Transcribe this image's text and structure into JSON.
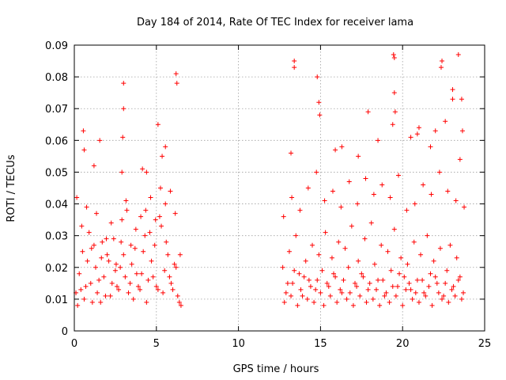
{
  "chart_data": {
    "type": "scatter",
    "title": "Day 184 of 2014, Rate Of TEC Index for receiver lama",
    "xlabel": "GPS time / hours",
    "ylabel": "ROTI / TECUs",
    "xlim": [
      0,
      25
    ],
    "ylim": [
      0,
      0.09
    ],
    "xticks": [
      0,
      5,
      10,
      15,
      20,
      25
    ],
    "xtick_labels": [
      "0",
      "5",
      "10",
      "15",
      "20",
      "25"
    ],
    "yticks": [
      0,
      0.01,
      0.02,
      0.03,
      0.04,
      0.05,
      0.06,
      0.07,
      0.08,
      0.09
    ],
    "ytick_labels": [
      "0",
      "0.01",
      "0.02",
      "0.03",
      "0.04",
      "0.05",
      "0.06",
      "0.07",
      "0.08",
      "0.09"
    ],
    "grid": true,
    "marker": "+",
    "color": "#ff0000",
    "series": [
      {
        "name": "ROTI",
        "x": [
          0.1,
          0.3,
          0.5,
          0.7,
          0.9,
          1.1,
          1.3,
          1.5,
          1.7,
          1.9,
          2.1,
          2.3,
          2.5,
          2.7,
          2.9,
          3.0,
          3.1,
          3.3,
          3.5,
          3.7,
          3.9,
          4.1,
          4.3,
          4.5,
          4.7,
          4.9,
          5.1,
          5.3,
          5.5,
          5.7,
          5.9,
          6.1,
          6.3,
          6.5,
          0.2,
          0.4,
          0.6,
          0.8,
          1.0,
          1.2,
          1.4,
          1.6,
          1.8,
          2.0,
          2.2,
          2.4,
          2.6,
          2.8,
          3.2,
          3.4,
          3.6,
          3.8,
          4.0,
          4.2,
          4.4,
          4.6,
          4.8,
          5.0,
          5.2,
          5.4,
          5.6,
          5.8,
          6.0,
          6.2,
          6.4,
          0.15,
          0.45,
          0.75,
          1.05,
          1.35,
          1.65,
          1.95,
          2.25,
          2.55,
          2.85,
          3.15,
          3.45,
          3.75,
          4.05,
          4.35,
          4.65,
          4.95,
          5.25,
          5.55,
          5.85,
          6.15,
          6.45,
          0.6,
          1.2,
          3.0,
          3.0,
          2.95,
          4.15,
          5.1,
          5.35,
          6.2,
          6.25,
          0.55,
          1.55,
          2.9,
          4.4,
          5.55,
          12.7,
          12.9,
          13.1,
          13.3,
          13.5,
          13.7,
          13.9,
          14.1,
          14.3,
          14.5,
          14.7,
          14.9,
          15.1,
          15.3,
          15.5,
          15.7,
          15.9,
          16.1,
          16.3,
          16.5,
          16.7,
          16.9,
          17.1,
          17.3,
          17.5,
          17.7,
          17.9,
          18.1,
          18.3,
          18.5,
          18.7,
          18.9,
          19.1,
          19.3,
          19.5,
          19.7,
          19.9,
          20.1,
          20.3,
          20.5,
          20.7,
          20.9,
          21.1,
          21.3,
          21.5,
          21.7,
          21.9,
          22.1,
          22.3,
          22.5,
          22.7,
          22.9,
          23.1,
          23.3,
          23.5,
          23.7,
          12.8,
          13.0,
          13.2,
          13.4,
          13.6,
          13.8,
          14.0,
          14.2,
          14.4,
          14.6,
          14.8,
          15.0,
          15.2,
          15.4,
          15.6,
          15.8,
          16.0,
          16.2,
          16.4,
          16.6,
          16.8,
          17.0,
          17.2,
          17.4,
          17.6,
          17.8,
          18.0,
          18.2,
          18.4,
          18.6,
          18.8,
          19.0,
          19.2,
          19.4,
          19.6,
          19.8,
          20.0,
          20.2,
          20.4,
          20.6,
          20.8,
          21.0,
          21.2,
          21.4,
          21.6,
          21.8,
          22.0,
          22.2,
          22.4,
          22.6,
          22.8,
          23.0,
          23.2,
          23.4,
          23.6,
          12.75,
          13.25,
          13.75,
          14.25,
          14.75,
          15.25,
          15.75,
          16.25,
          16.75,
          17.25,
          17.75,
          18.25,
          18.75,
          19.25,
          19.75,
          20.25,
          20.75,
          21.25,
          21.75,
          22.25,
          22.75,
          23.25,
          23.75,
          13.4,
          13.4,
          14.8,
          14.9,
          14.95,
          17.9,
          19.45,
          19.5,
          19.5,
          19.55,
          19.4,
          22.35,
          22.4,
          23.05,
          23.05,
          23.4,
          23.6,
          23.65,
          22.0,
          21.0,
          20.5,
          16.3,
          13.2,
          15.9,
          18.5,
          17.3,
          21.7,
          22.6,
          23.5,
          20.9
        ],
        "y": [
          0.012,
          0.018,
          0.025,
          0.014,
          0.031,
          0.009,
          0.02,
          0.016,
          0.028,
          0.011,
          0.022,
          0.015,
          0.019,
          0.013,
          0.035,
          0.024,
          0.017,
          0.012,
          0.021,
          0.026,
          0.014,
          0.018,
          0.03,
          0.016,
          0.022,
          0.027,
          0.013,
          0.033,
          0.019,
          0.024,
          0.015,
          0.021,
          0.011,
          0.008,
          0.008,
          0.013,
          0.01,
          0.022,
          0.015,
          0.027,
          0.012,
          0.009,
          0.017,
          0.024,
          0.011,
          0.029,
          0.014,
          0.02,
          0.038,
          0.015,
          0.01,
          0.018,
          0.013,
          0.025,
          0.009,
          0.031,
          0.017,
          0.014,
          0.036,
          0.012,
          0.028,
          0.017,
          0.013,
          0.02,
          0.009,
          0.042,
          0.033,
          0.039,
          0.026,
          0.037,
          0.023,
          0.029,
          0.034,
          0.021,
          0.028,
          0.041,
          0.027,
          0.032,
          0.036,
          0.038,
          0.042,
          0.035,
          0.045,
          0.04,
          0.044,
          0.037,
          0.024,
          0.057,
          0.052,
          0.078,
          0.07,
          0.061,
          0.051,
          0.065,
          0.055,
          0.081,
          0.078,
          0.063,
          0.06,
          0.05,
          0.05,
          0.058,
          0.02,
          0.012,
          0.025,
          0.015,
          0.03,
          0.018,
          0.011,
          0.022,
          0.016,
          0.027,
          0.013,
          0.024,
          0.019,
          0.031,
          0.014,
          0.023,
          0.017,
          0.028,
          0.012,
          0.026,
          0.02,
          0.033,
          0.015,
          0.022,
          0.018,
          0.029,
          0.013,
          0.034,
          0.021,
          0.016,
          0.027,
          0.011,
          0.025,
          0.019,
          0.032,
          0.014,
          0.023,
          0.017,
          0.021,
          0.013,
          0.028,
          0.016,
          0.024,
          0.012,
          0.03,
          0.018,
          0.022,
          0.015,
          0.026,
          0.011,
          0.019,
          0.027,
          0.014,
          0.023,
          0.017,
          0.012,
          0.009,
          0.015,
          0.011,
          0.019,
          0.008,
          0.013,
          0.017,
          0.01,
          0.014,
          0.009,
          0.016,
          0.012,
          0.008,
          0.015,
          0.011,
          0.018,
          0.009,
          0.013,
          0.016,
          0.01,
          0.012,
          0.008,
          0.014,
          0.011,
          0.017,
          0.009,
          0.015,
          0.01,
          0.013,
          0.008,
          0.016,
          0.012,
          0.009,
          0.014,
          0.011,
          0.018,
          0.008,
          0.013,
          0.015,
          0.01,
          0.012,
          0.009,
          0.016,
          0.011,
          0.014,
          0.008,
          0.017,
          0.012,
          0.01,
          0.015,
          0.009,
          0.013,
          0.011,
          0.016,
          0.01,
          0.036,
          0.042,
          0.038,
          0.045,
          0.05,
          0.041,
          0.044,
          0.039,
          0.047,
          0.04,
          0.048,
          0.043,
          0.046,
          0.042,
          0.049,
          0.038,
          0.04,
          0.046,
          0.043,
          0.05,
          0.044,
          0.041,
          0.039,
          0.085,
          0.083,
          0.08,
          0.072,
          0.068,
          0.069,
          0.087,
          0.086,
          0.075,
          0.069,
          0.065,
          0.083,
          0.085,
          0.076,
          0.073,
          0.087,
          0.073,
          0.063,
          0.063,
          0.064,
          0.061,
          0.058,
          0.056,
          0.057,
          0.06,
          0.055,
          0.058,
          0.066,
          0.054,
          0.062
        ]
      }
    ]
  }
}
